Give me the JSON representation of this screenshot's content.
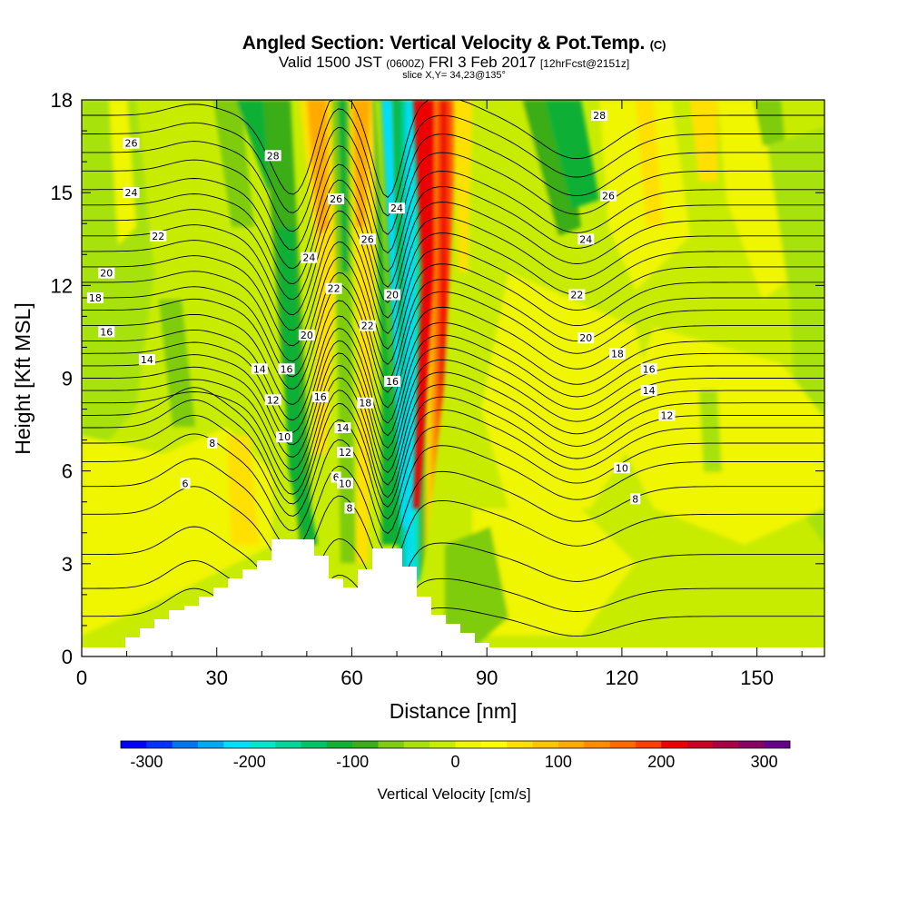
{
  "title": {
    "main": "Angled Section: Vertical Velocity & Pot.Temp.",
    "main_suffix": "(C)",
    "valid_prefix": "Valid 1500 JST",
    "valid_utc": "(0600Z)",
    "valid_date": "FRI 3 Feb 2017",
    "forecast": "[12hrFcst@2151z]",
    "slice": "slice X,Y= 34,23@135°"
  },
  "chart_data": {
    "type": "heatmap",
    "xlabel": "Distance [nm]",
    "ylabel": "Height [Kft MSL]",
    "xlim": [
      0,
      165
    ],
    "ylim": [
      0,
      18
    ],
    "xticks": [
      0,
      30,
      60,
      90,
      120,
      150
    ],
    "yticks": [
      0,
      3,
      6,
      9,
      12,
      15,
      18
    ],
    "colorbar": {
      "label": "Vertical Velocity [cm/s]",
      "range": [
        -325,
        325
      ],
      "step": 25,
      "ticks": [
        -300,
        -200,
        -100,
        0,
        100,
        200,
        300
      ],
      "colors": [
        "#0000ff",
        "#0033ff",
        "#0077ee",
        "#00aaf2",
        "#00ddff",
        "#00e6cc",
        "#00d69a",
        "#00c465",
        "#10b035",
        "#3aad18",
        "#7fcc10",
        "#a8e20a",
        "#c8ec00",
        "#f0f500",
        "#ffff00",
        "#ffe000",
        "#ffc400",
        "#ffaa00",
        "#ff8c00",
        "#ff6a00",
        "#ff4000",
        "#ee0000",
        "#cc0022",
        "#aa0044",
        "#880066",
        "#660088"
      ]
    },
    "contour_field": "Potential Temperature (C)",
    "contour_labels": [
      {
        "value": "26",
        "x": 11,
        "y": 16.6
      },
      {
        "value": "24",
        "x": 11,
        "y": 15.0
      },
      {
        "value": "22",
        "x": 17,
        "y": 13.6
      },
      {
        "value": "20",
        "x": 5.5,
        "y": 12.4
      },
      {
        "value": "18",
        "x": 3,
        "y": 11.6
      },
      {
        "value": "16",
        "x": 5.5,
        "y": 10.5
      },
      {
        "value": "14",
        "x": 14.5,
        "y": 9.6
      },
      {
        "value": "14",
        "x": 39.5,
        "y": 9.3
      },
      {
        "value": "16",
        "x": 45.5,
        "y": 9.3
      },
      {
        "value": "12",
        "x": 42.5,
        "y": 8.3
      },
      {
        "value": "10",
        "x": 45,
        "y": 7.1
      },
      {
        "value": "8",
        "x": 29,
        "y": 6.9
      },
      {
        "value": "6",
        "x": 23,
        "y": 5.6
      },
      {
        "value": "28",
        "x": 42.5,
        "y": 16.2
      },
      {
        "value": "26",
        "x": 56.5,
        "y": 14.8
      },
      {
        "value": "24",
        "x": 50.5,
        "y": 12.9
      },
      {
        "value": "22",
        "x": 56,
        "y": 11.9
      },
      {
        "value": "20",
        "x": 50,
        "y": 10.4
      },
      {
        "value": "16",
        "x": 53,
        "y": 8.4
      },
      {
        "value": "6",
        "x": 56.5,
        "y": 5.8
      },
      {
        "value": "26",
        "x": 63.5,
        "y": 13.5
      },
      {
        "value": "24",
        "x": 70,
        "y": 14.5
      },
      {
        "value": "20",
        "x": 69,
        "y": 11.7
      },
      {
        "value": "22",
        "x": 63.5,
        "y": 10.7
      },
      {
        "value": "16",
        "x": 69,
        "y": 8.9
      },
      {
        "value": "18",
        "x": 63,
        "y": 8.2
      },
      {
        "value": "14",
        "x": 58,
        "y": 7.4
      },
      {
        "value": "12",
        "x": 58.5,
        "y": 6.6
      },
      {
        "value": "10",
        "x": 58.5,
        "y": 5.6
      },
      {
        "value": "8",
        "x": 59.5,
        "y": 4.8
      },
      {
        "value": "28",
        "x": 115,
        "y": 17.5
      },
      {
        "value": "26",
        "x": 117,
        "y": 14.9
      },
      {
        "value": "24",
        "x": 112,
        "y": 13.5
      },
      {
        "value": "22",
        "x": 110,
        "y": 11.7
      },
      {
        "value": "20",
        "x": 112,
        "y": 10.3
      },
      {
        "value": "18",
        "x": 119,
        "y": 9.8
      },
      {
        "value": "16",
        "x": 126,
        "y": 9.3
      },
      {
        "value": "14",
        "x": 126,
        "y": 8.6
      },
      {
        "value": "12",
        "x": 130,
        "y": 7.8
      },
      {
        "value": "10",
        "x": 120,
        "y": 6.1
      },
      {
        "value": "8",
        "x": 123,
        "y": 5.1
      }
    ]
  }
}
